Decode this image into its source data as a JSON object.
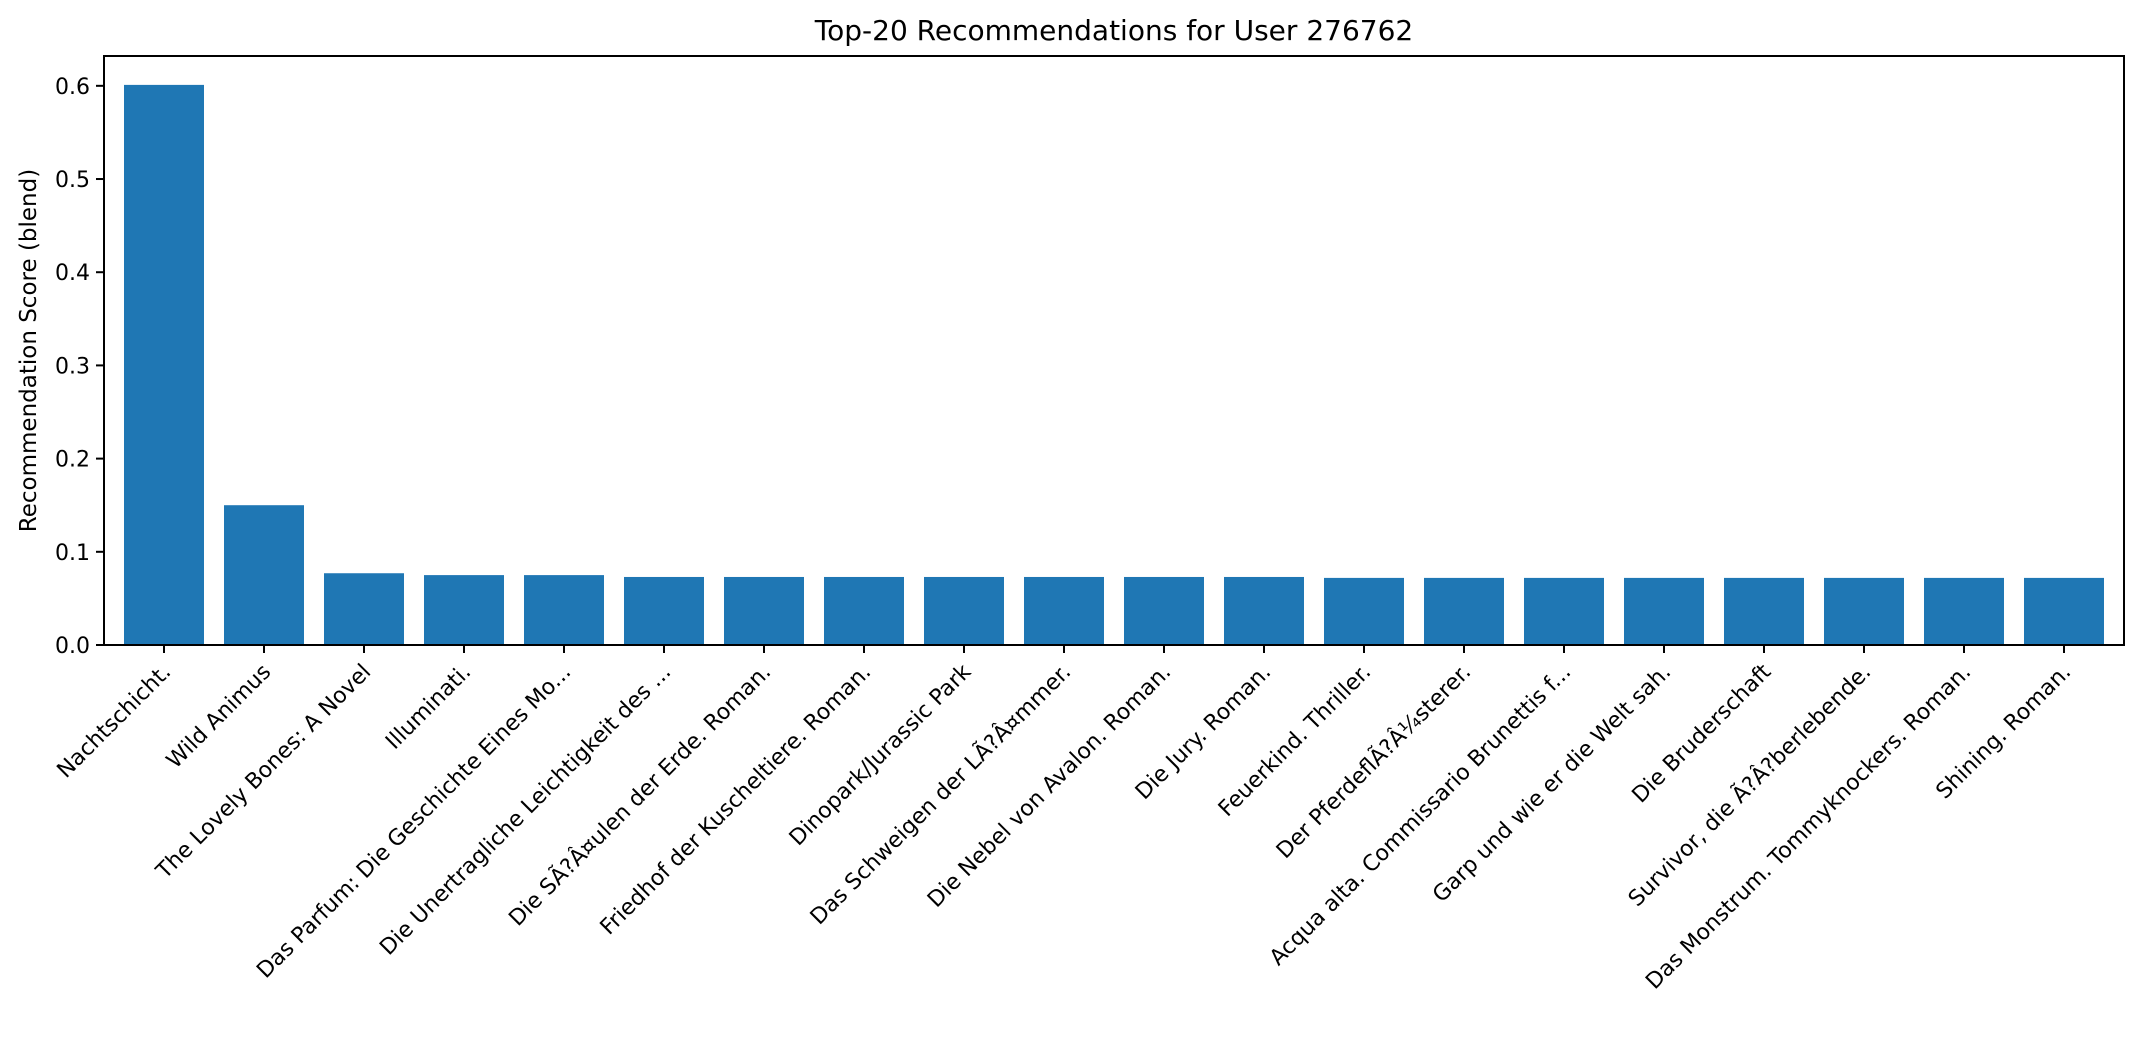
{
  "chart_data": {
    "type": "bar",
    "title": "Top-20 Recommendations for User 276762",
    "xlabel": "",
    "ylabel": "Recommendation Score (blend)",
    "ylim": [
      0,
      0.632
    ],
    "yticks": [
      0.0,
      0.1,
      0.2,
      0.3,
      0.4,
      0.5,
      0.6
    ],
    "ytick_labels": [
      "0.0",
      "0.1",
      "0.2",
      "0.3",
      "0.4",
      "0.5",
      "0.6"
    ],
    "grid": false,
    "bar_color": "#1f77b4",
    "categories": [
      "Nachtschicht.",
      "Wild Animus",
      "The Lovely Bones: A Novel",
      "Illuminati.",
      "Das Parfum: Die Geschichte Eines Mo...",
      "Die Unertragliche Leichtigkeit des ...",
      "Die SÃ?Â¤ulen der Erde. Roman.",
      "Friedhof der Kuscheltiere. Roman.",
      "Dinopark/Jurassic Park",
      "Das Schweigen der LÃ?Â¤mmer.",
      "Die Nebel von Avalon. Roman.",
      "Die Jury. Roman.",
      "Feuerkind. Thriller.",
      "Der PferdeflÃ?Â¼sterer.",
      "Acqua alta. Commissario Brunettis f...",
      "Garp und wie er die Welt sah.",
      "Die Bruderschaft",
      "Survivor, die Ã?Â?berlebende.",
      "Das Monstrum. Tommyknockers. Roman.",
      "Shining. Roman."
    ],
    "values": [
      0.601,
      0.15,
      0.077,
      0.075,
      0.075,
      0.073,
      0.073,
      0.073,
      0.073,
      0.073,
      0.073,
      0.073,
      0.072,
      0.072,
      0.072,
      0.072,
      0.072,
      0.072,
      0.072,
      0.072
    ]
  }
}
